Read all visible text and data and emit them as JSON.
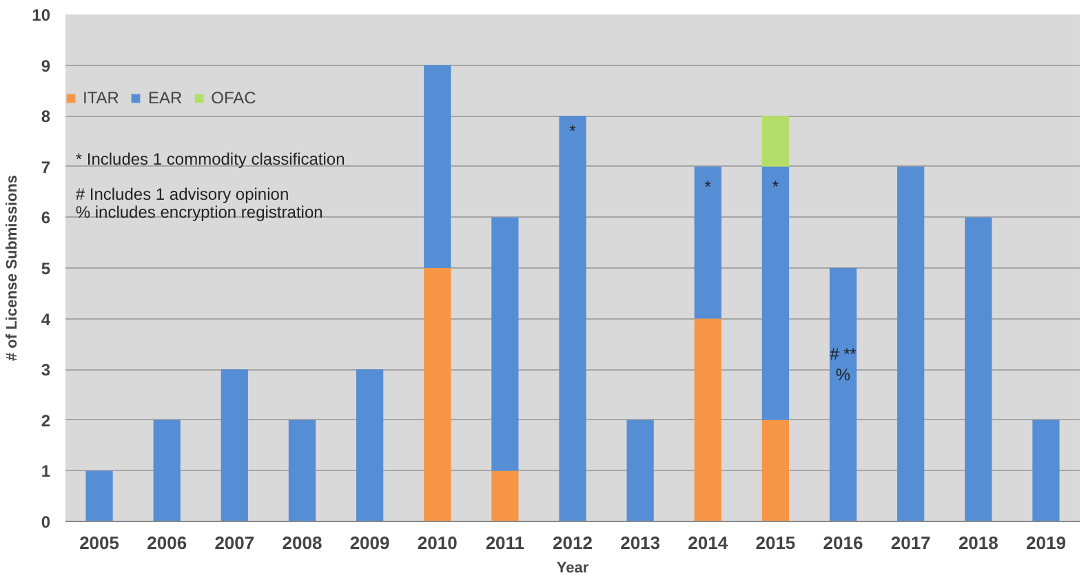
{
  "chart_data": {
    "type": "bar",
    "stacked": true,
    "xlabel": "Year",
    "ylabel": "# of License Submissions",
    "categories": [
      "2005",
      "2006",
      "2007",
      "2008",
      "2009",
      "2010",
      "2011",
      "2012",
      "2013",
      "2014",
      "2015",
      "2016",
      "2017",
      "2018",
      "2019"
    ],
    "series": [
      {
        "name": "ITAR",
        "color": "#f79646",
        "values": [
          0,
          0,
          0,
          0,
          0,
          5,
          1,
          0,
          0,
          4,
          2,
          0,
          0,
          0,
          0
        ]
      },
      {
        "name": "EAR",
        "color": "#558ed5",
        "values": [
          1,
          2,
          3,
          2,
          3,
          4,
          5,
          8,
          2,
          3,
          5,
          5,
          7,
          6,
          2
        ]
      },
      {
        "name": "OFAC",
        "color": "#b3de69",
        "values": [
          0,
          0,
          0,
          0,
          0,
          0,
          0,
          0,
          0,
          0,
          1,
          0,
          0,
          0,
          0
        ]
      }
    ],
    "ylim": [
      0,
      10
    ],
    "yticks": [
      0,
      1,
      2,
      3,
      4,
      5,
      6,
      7,
      8,
      9,
      10
    ],
    "grid": "y",
    "legend": "top left",
    "annotations": [
      "* Includes  1 commodity classification",
      "# Includes 1 advisory opinion",
      "% includes encryption registration",
      "*",
      "*",
      "*",
      "# **",
      "%"
    ]
  }
}
